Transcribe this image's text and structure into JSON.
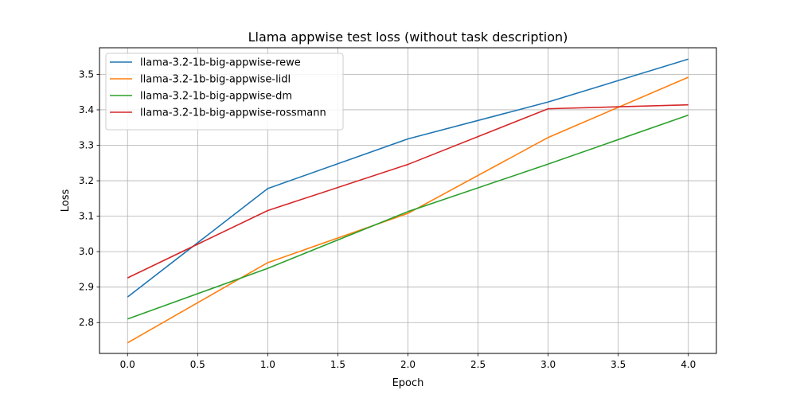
{
  "chart_data": {
    "type": "line",
    "title": "Llama appwise test loss (without task description)",
    "xlabel": "Epoch",
    "ylabel": "Loss",
    "x": [
      0,
      1,
      2,
      3,
      4
    ],
    "xlim": [
      -0.2,
      4.2
    ],
    "ylim": [
      2.713,
      3.575
    ],
    "xticks": [
      0.0,
      0.5,
      1.0,
      1.5,
      2.0,
      2.5,
      3.0,
      3.5,
      4.0
    ],
    "yticks": [
      2.8,
      2.9,
      3.0,
      3.1,
      3.2,
      3.3,
      3.4,
      3.5
    ],
    "grid": true,
    "legend_position": "top-left",
    "series": [
      {
        "name": "llama-3.2-1b-big-appwise-rewe",
        "color": "#1f77b4",
        "values": [
          2.872,
          3.178,
          3.318,
          3.422,
          3.543
        ]
      },
      {
        "name": "llama-3.2-1b-big-appwise-lidl",
        "color": "#ff7f0e",
        "values": [
          2.743,
          2.969,
          3.108,
          3.322,
          3.492
        ]
      },
      {
        "name": "llama-3.2-1b-big-appwise-dm",
        "color": "#2ca02c",
        "values": [
          2.81,
          2.953,
          3.113,
          3.247,
          3.385
        ]
      },
      {
        "name": "llama-3.2-1b-big-appwise-rossmann",
        "color": "#d62728",
        "values": [
          2.926,
          3.116,
          3.246,
          3.403,
          3.414
        ]
      }
    ]
  }
}
